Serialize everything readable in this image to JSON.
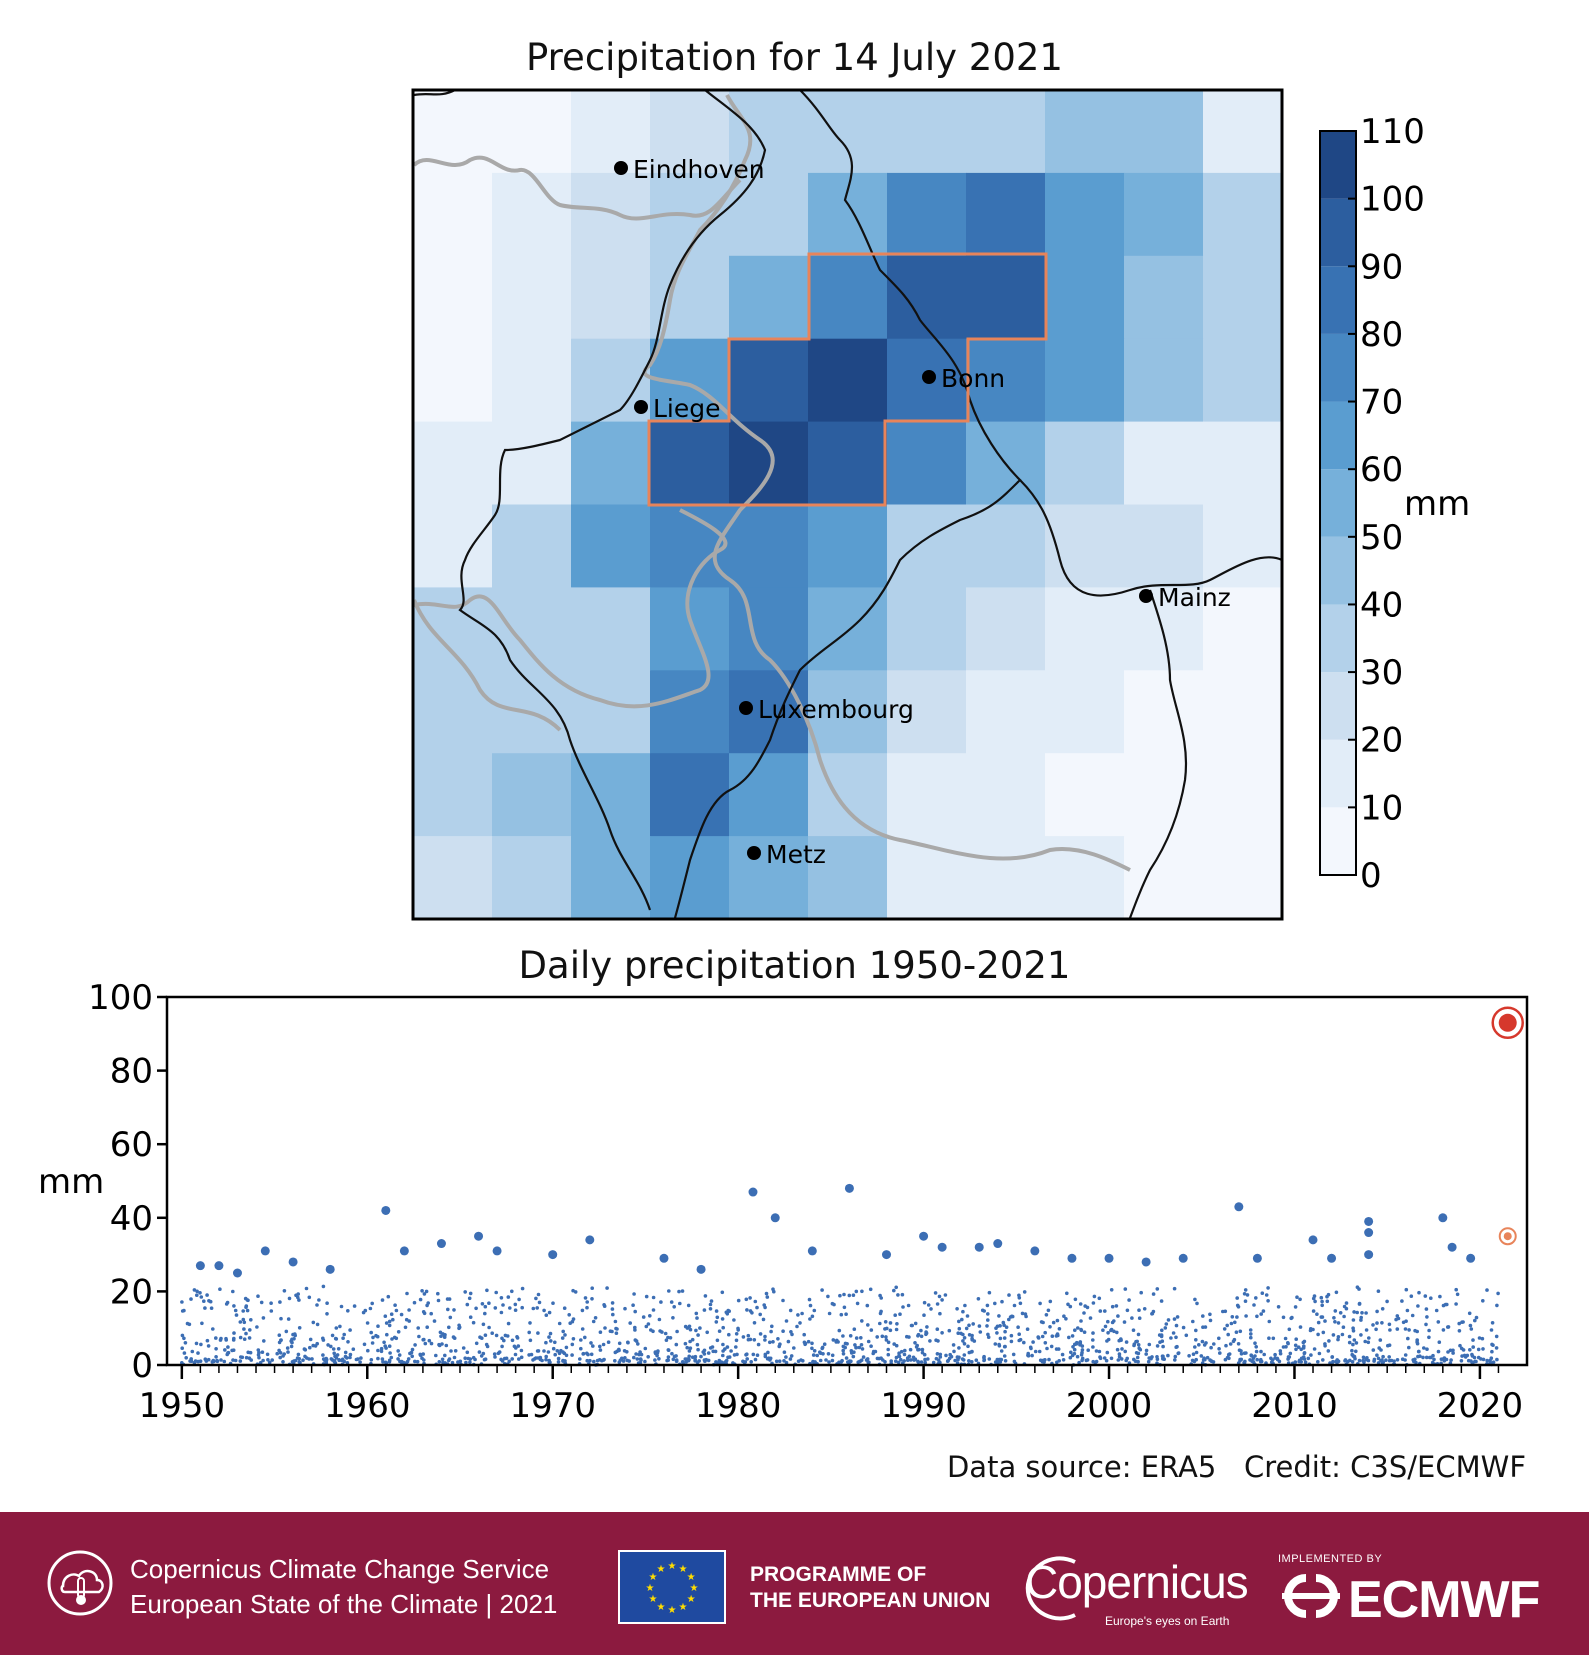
{
  "map": {
    "title": "Precipitation for 14 July 2021",
    "colorbar": {
      "label": "mm",
      "ticks": [
        "0",
        "10",
        "20",
        "30",
        "40",
        "50",
        "60",
        "70",
        "80",
        "90",
        "100",
        "110"
      ],
      "colors": [
        "#f3f7fd",
        "#e2edf8",
        "#cddff0",
        "#b3d1ea",
        "#95c1e2",
        "#76b0da",
        "#5a9dd0",
        "#4787c2",
        "#3872b3",
        "#2c5e9f",
        "#1f4785",
        "#0f2f6b"
      ]
    },
    "cities": [
      "Eindhoven",
      "Liege",
      "Bonn",
      "Mainz",
      "Luxembourg",
      "Metz"
    ]
  },
  "chart_data": {
    "type": "scatter",
    "title": "Daily precipitation 1950-2021",
    "xlabel": "",
    "ylabel": "mm",
    "xlim": [
      1950,
      2022
    ],
    "ylim": [
      0,
      100
    ],
    "x_ticks": [
      "1950",
      "1960",
      "1970",
      "1980",
      "1990",
      "2000",
      "2010",
      "2020"
    ],
    "y_ticks": [
      "0",
      "20",
      "40",
      "60",
      "80",
      "100"
    ],
    "grid": false,
    "highlight": [
      {
        "date": "2021-07-14",
        "value": 93,
        "color": "#d6382c"
      },
      {
        "date": "2021-07-13",
        "value": 35,
        "color": "#e8845a"
      }
    ],
    "notable_points": [
      {
        "year": 1951.0,
        "value": 27
      },
      {
        "year": 1952.0,
        "value": 27
      },
      {
        "year": 1953.0,
        "value": 25
      },
      {
        "year": 1954.5,
        "value": 31
      },
      {
        "year": 1956.0,
        "value": 28
      },
      {
        "year": 1958.0,
        "value": 26
      },
      {
        "year": 1961.0,
        "value": 42
      },
      {
        "year": 1962.0,
        "value": 31
      },
      {
        "year": 1964.0,
        "value": 33
      },
      {
        "year": 1966.0,
        "value": 35
      },
      {
        "year": 1967.0,
        "value": 31
      },
      {
        "year": 1970.0,
        "value": 30
      },
      {
        "year": 1972.0,
        "value": 34
      },
      {
        "year": 1976.0,
        "value": 29
      },
      {
        "year": 1978.0,
        "value": 26
      },
      {
        "year": 1980.8,
        "value": 47
      },
      {
        "year": 1982.0,
        "value": 40
      },
      {
        "year": 1984.0,
        "value": 31
      },
      {
        "year": 1986.0,
        "value": 48
      },
      {
        "year": 1988.0,
        "value": 30
      },
      {
        "year": 1990.0,
        "value": 35
      },
      {
        "year": 1991.0,
        "value": 32
      },
      {
        "year": 1993.0,
        "value": 32
      },
      {
        "year": 1994.0,
        "value": 33
      },
      {
        "year": 1996.0,
        "value": 31
      },
      {
        "year": 1998.0,
        "value": 29
      },
      {
        "year": 2000.0,
        "value": 29
      },
      {
        "year": 2002.0,
        "value": 28
      },
      {
        "year": 2004.0,
        "value": 29
      },
      {
        "year": 2007.0,
        "value": 43
      },
      {
        "year": 2008.0,
        "value": 29
      },
      {
        "year": 2011.0,
        "value": 34
      },
      {
        "year": 2012.0,
        "value": 29
      },
      {
        "year": 2014.0,
        "value": 39
      },
      {
        "year": 2014.0,
        "value": 36
      },
      {
        "year": 2014.0,
        "value": 30
      },
      {
        "year": 2018.0,
        "value": 40
      },
      {
        "year": 2018.5,
        "value": 32
      },
      {
        "year": 2019.5,
        "value": 29
      }
    ],
    "background_series": {
      "name": "",
      "description_count": 1800,
      "typical_max": 20,
      "color": "#3c6eb4"
    }
  },
  "credits": {
    "source": "Data source: ERA5",
    "credit": "Credit: C3S/ECMWF"
  },
  "footer": {
    "c3s_line1": "Copernicus Climate Change Service",
    "c3s_line2": "European State of the Climate | 2021",
    "eu_line1": "PROGRAMME OF",
    "eu_line2": "THE EUROPEAN UNION",
    "copernicus": "Copernicus",
    "copernicus_tag": "Europe's eyes on Earth",
    "implemented_by": "IMPLEMENTED BY",
    "ecmwf": "ECMWF",
    "background_color": "#8c1a3f"
  }
}
